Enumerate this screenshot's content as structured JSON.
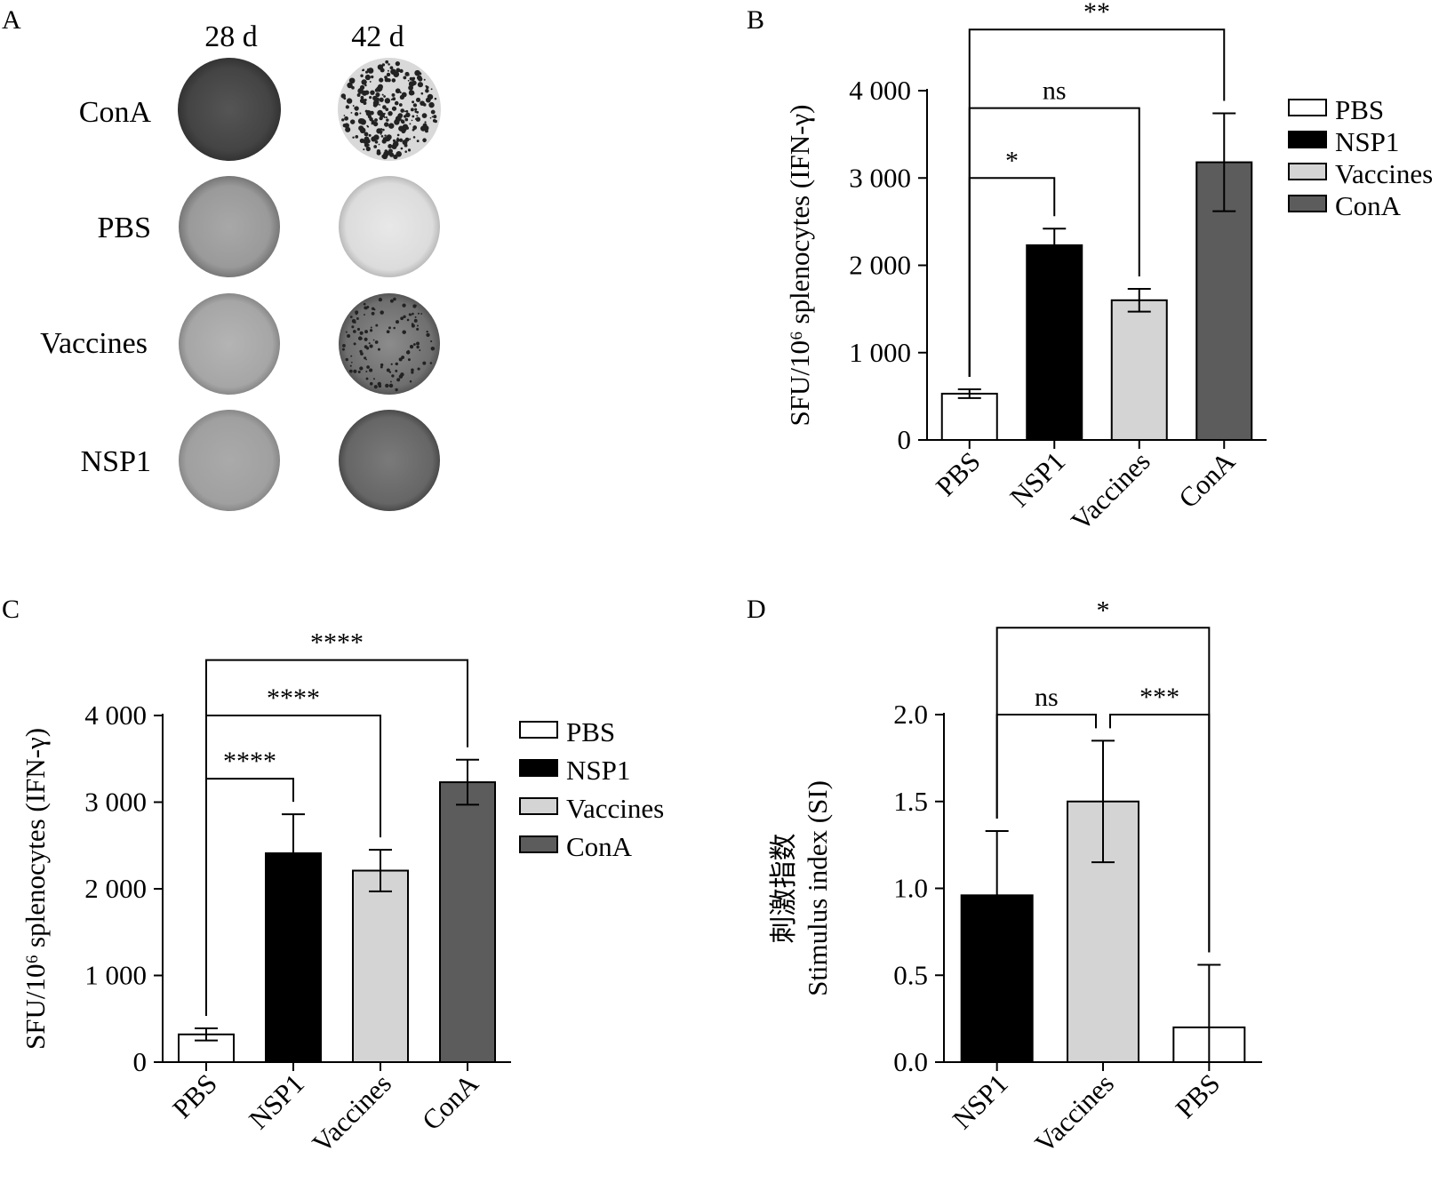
{
  "colors": {
    "PBS": "#ffffff",
    "NSP1": "#000000",
    "Vaccines": "#d4d4d4",
    "ConA": "#5c5c5c"
  },
  "panel_a": {
    "label": "A",
    "columns": [
      "28 d",
      "42 d"
    ],
    "rows": [
      "ConA",
      "PBS",
      "Vaccines",
      "NSP1"
    ]
  },
  "chart_data": [
    {
      "panel": "B",
      "type": "bar",
      "categories": [
        "PBS",
        "NSP1",
        "Vaccines",
        "ConA"
      ],
      "values": [
        530,
        2230,
        1600,
        3180
      ],
      "errors": [
        50,
        190,
        130,
        560
      ],
      "ylabel": "SFU/10⁶ splenocytes (IFN-γ)",
      "ylim": [
        0,
        4000
      ],
      "yticks": [
        0,
        1000,
        2000,
        3000,
        4000
      ],
      "ytick_labels": [
        "0",
        "1 000",
        "2 000",
        "3 000",
        "4 000"
      ],
      "legend": [
        "PBS",
        "NSP1",
        "Vaccines",
        "ConA"
      ],
      "legend_position": "right",
      "grid": false,
      "significance": [
        {
          "from": 0,
          "to": 1,
          "label": "*",
          "height": 3000
        },
        {
          "from": 0,
          "to": 2,
          "label": "ns",
          "height": 3800
        },
        {
          "from": 0,
          "to": 3,
          "label": "**",
          "height": 4700
        }
      ]
    },
    {
      "panel": "C",
      "type": "bar",
      "categories": [
        "PBS",
        "NSP1",
        "Vaccines",
        "ConA"
      ],
      "values": [
        320,
        2410,
        2210,
        3230
      ],
      "errors": [
        70,
        450,
        240,
        260
      ],
      "ylabel": "SFU/10⁶ splenocytes (IFN-γ)",
      "ylim": [
        0,
        4000
      ],
      "yticks": [
        0,
        1000,
        2000,
        3000,
        4000
      ],
      "ytick_labels": [
        "0",
        "1 000",
        "2 000",
        "3 000",
        "4 000"
      ],
      "legend": [
        "PBS",
        "NSP1",
        "Vaccines",
        "ConA"
      ],
      "legend_position": "right",
      "grid": false,
      "significance": [
        {
          "from": 0,
          "to": 1,
          "label": "****",
          "height": 3270
        },
        {
          "from": 0,
          "to": 2,
          "label": "****",
          "height": 4000
        },
        {
          "from": 0,
          "to": 3,
          "label": "****",
          "height": 4640
        }
      ]
    },
    {
      "panel": "D",
      "type": "bar",
      "categories": [
        "NSP1",
        "Vaccines",
        "PBS"
      ],
      "values": [
        0.96,
        1.5,
        0.2
      ],
      "errors": [
        0.37,
        0.35,
        0.36
      ],
      "ylabel": [
        "刺激指数",
        "Stimulus index (SI)"
      ],
      "ylim": [
        0,
        2.0
      ],
      "yticks": [
        0,
        0.5,
        1.0,
        1.5,
        2.0
      ],
      "ytick_labels": [
        "0.0",
        "0.5",
        "1.0",
        "1.5",
        "2.0"
      ],
      "grid": false,
      "significance": [
        {
          "from": 0,
          "to": 1,
          "label": "ns",
          "height": 2.0
        },
        {
          "from": 1,
          "to": 2,
          "label": "***",
          "height": 2.0
        },
        {
          "from": 0,
          "to": 2,
          "label": "*",
          "height": 2.5
        }
      ]
    }
  ]
}
